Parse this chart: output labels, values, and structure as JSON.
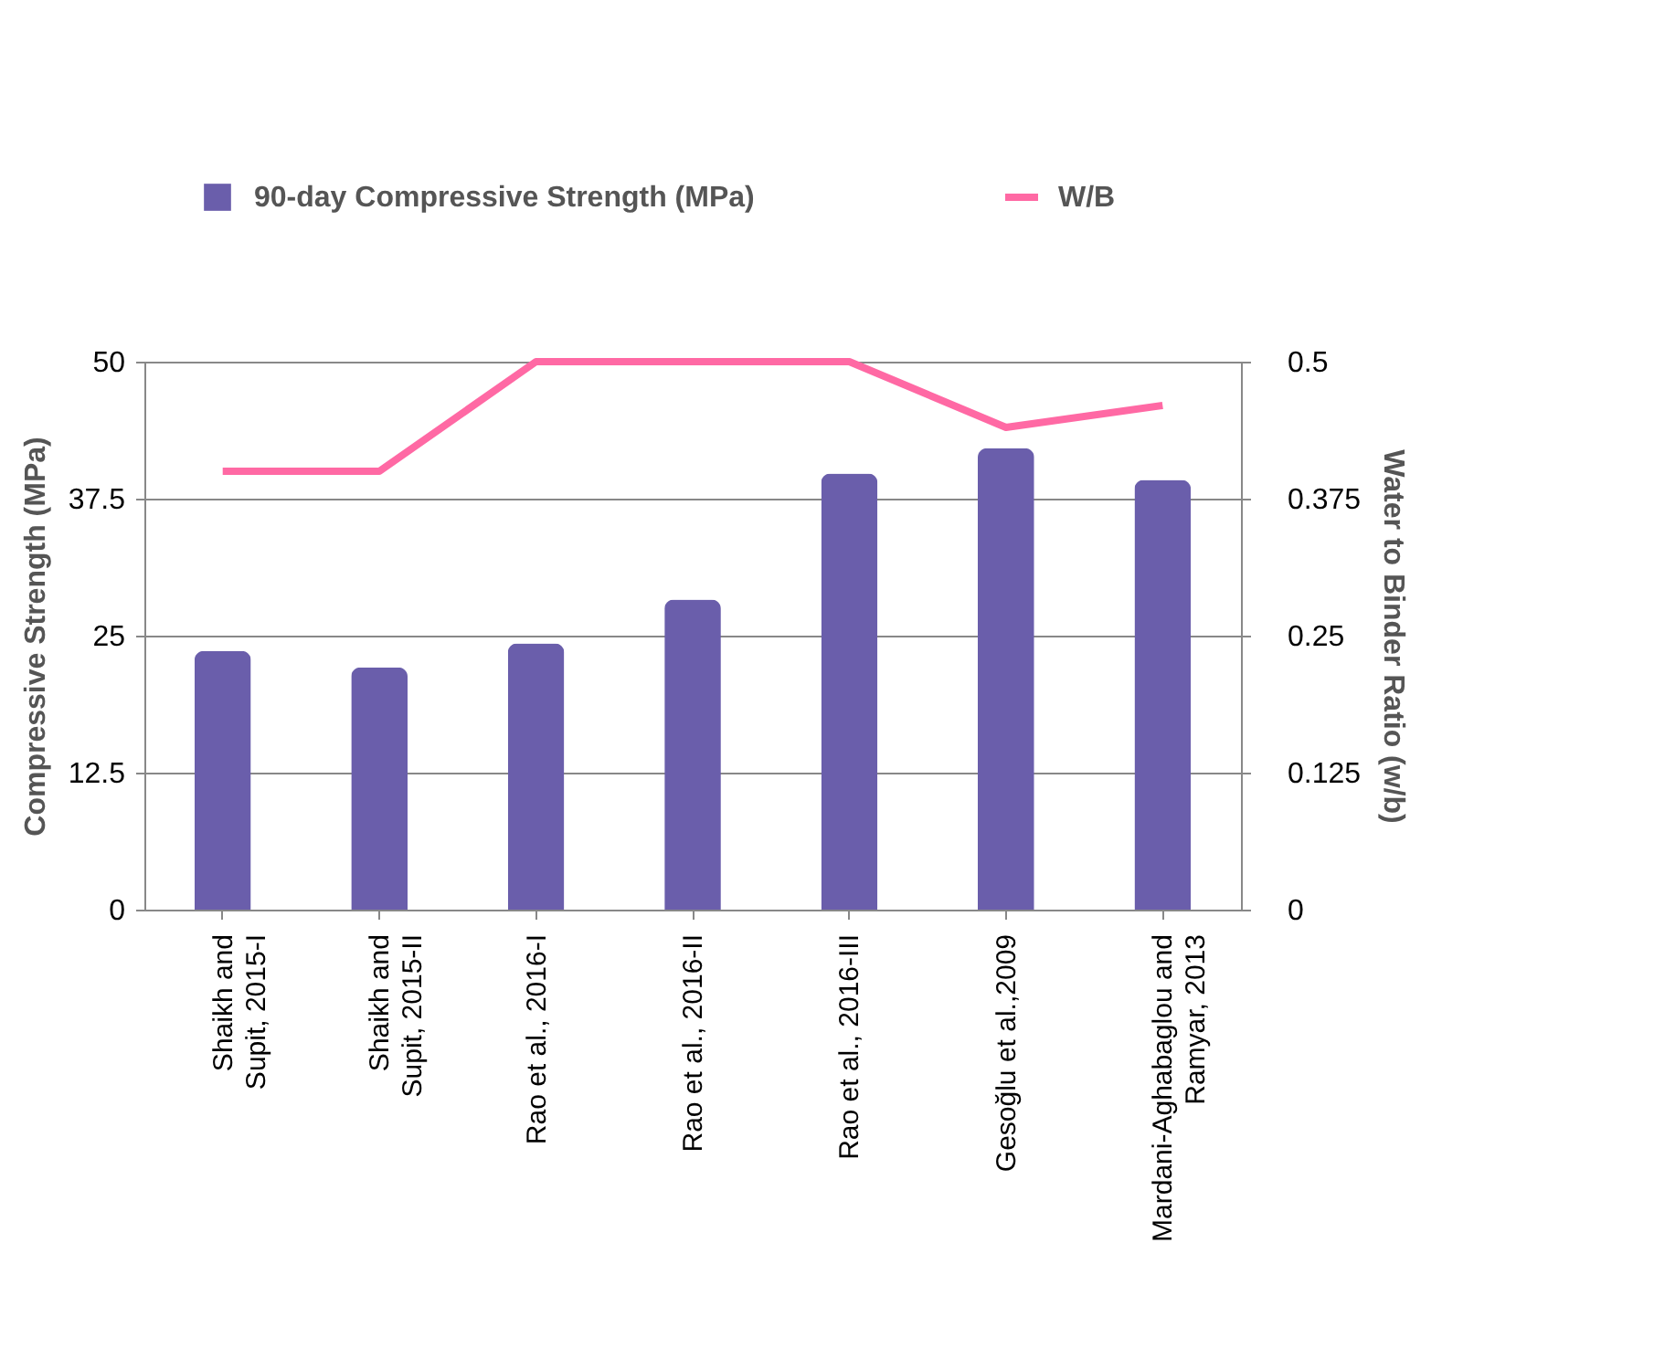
{
  "chart_data": {
    "type": "bar",
    "categories": [
      "Shaikh and\nSupit, 2015-I",
      "Shaikh and\nSupit, 2015-II",
      "Rao et al., 2016-I",
      "Rao et al., 2016-II",
      "Rao et al., 2016-III",
      "Gesoğlu et al.,2009",
      "Mardani-Aghabaglou and\nRamyar, 2013"
    ],
    "series": [
      {
        "name": "90-day  Compressive Strength (MPa)",
        "color": "#6a5eab",
        "values": [
          23.6,
          22.1,
          24.3,
          28.3,
          39.8,
          42.1,
          39.2
        ]
      },
      {
        "name": "W/B",
        "color": "#ff69a4",
        "type": "line",
        "axis": "y2",
        "values": [
          0.4,
          0.4,
          0.5,
          0.5,
          0.5,
          0.44,
          0.46
        ]
      }
    ],
    "ylabel": "Compressive Strength (MPa)",
    "y2label": "Water to Binder Ratio (w/b)",
    "ylim": [
      0,
      50
    ],
    "yticks": [
      0,
      12.5,
      25,
      37.5,
      50
    ],
    "y2lim": [
      0,
      0.5
    ],
    "y2ticks": [
      0,
      0.125,
      0.25,
      0.375,
      0.5
    ],
    "grid": "y",
    "legend": "top"
  }
}
